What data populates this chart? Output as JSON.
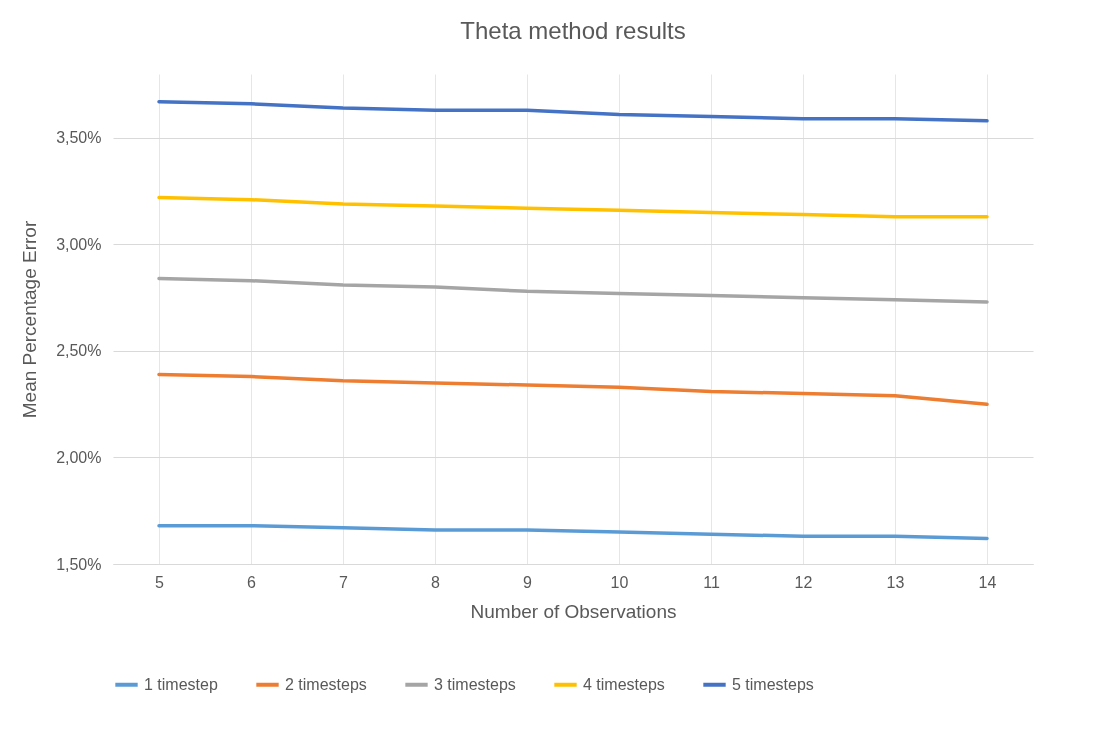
{
  "chart_data": {
    "type": "line",
    "title": "Theta method results",
    "xlabel": "Number of Observations",
    "ylabel": "Mean Percentage Error",
    "categories": [
      "5",
      "6",
      "7",
      "8",
      "9",
      "10",
      "11",
      "12",
      "13",
      "14"
    ],
    "series": [
      {
        "name": "1 timestep",
        "color": "#5b9bd5",
        "values": [
          1.68,
          1.68,
          1.67,
          1.66,
          1.66,
          1.65,
          1.64,
          1.63,
          1.63,
          1.62
        ]
      },
      {
        "name": "2 timesteps",
        "color": "#ed7d31",
        "values": [
          2.39,
          2.38,
          2.36,
          2.35,
          2.34,
          2.33,
          2.31,
          2.3,
          2.29,
          2.25
        ]
      },
      {
        "name": "3 timesteps",
        "color": "#a5a5a5",
        "values": [
          2.84,
          2.83,
          2.81,
          2.8,
          2.78,
          2.77,
          2.76,
          2.75,
          2.74,
          2.73
        ]
      },
      {
        "name": "4 timesteps",
        "color": "#ffc000",
        "values": [
          3.22,
          3.21,
          3.19,
          3.18,
          3.17,
          3.16,
          3.15,
          3.14,
          3.13,
          3.13
        ]
      },
      {
        "name": "5 timesteps",
        "color": "#4472c4",
        "values": [
          3.67,
          3.66,
          3.64,
          3.63,
          3.63,
          3.61,
          3.6,
          3.59,
          3.59,
          3.58
        ]
      }
    ],
    "ylim": [
      1.5,
      3.8
    ],
    "yticks": [
      {
        "value": 1.5,
        "label": "1,50%"
      },
      {
        "value": 2.0,
        "label": "2,00%"
      },
      {
        "value": 2.5,
        "label": "2,50%"
      },
      {
        "value": 3.0,
        "label": "3,00%"
      },
      {
        "value": 3.5,
        "label": "3,50%"
      }
    ],
    "grid": true,
    "legend": "bottom",
    "marker": "none",
    "line_style": "solid"
  }
}
